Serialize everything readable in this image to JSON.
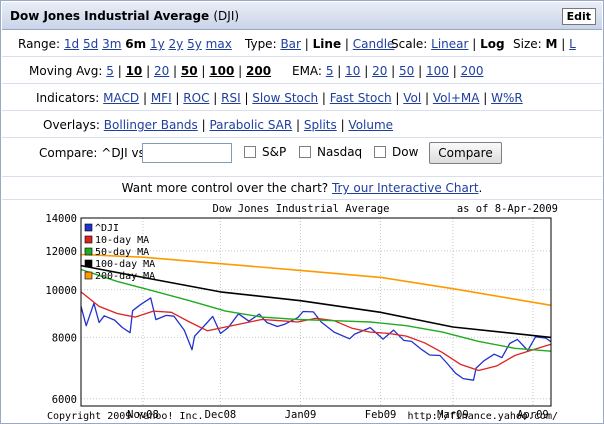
{
  "header": {
    "title": "Dow Jones Industrial Average",
    "symbol": "(DJI)",
    "edit_label": "Edit"
  },
  "range": {
    "label": "Range:",
    "options": [
      "1d",
      "5d",
      "3m",
      "6m",
      "1y",
      "2y",
      "5y",
      "max"
    ],
    "selected": "6m"
  },
  "type": {
    "label": "Type:",
    "options": [
      "Bar",
      "Line",
      "Candle"
    ],
    "selected": "Line"
  },
  "scale": {
    "label": "Scale:",
    "options": [
      "Linear",
      "Log"
    ],
    "selected": "Log"
  },
  "size": {
    "label": "Size:",
    "options": [
      "M",
      "L"
    ],
    "selected": "M"
  },
  "moving_avg": {
    "label": "Moving Avg:",
    "options": [
      "5",
      "10",
      "20",
      "50",
      "100",
      "200"
    ],
    "bold": [
      "10",
      "50",
      "100",
      "200"
    ]
  },
  "ema": {
    "label": "EMA:",
    "options": [
      "5",
      "10",
      "20",
      "50",
      "100",
      "200"
    ]
  },
  "indicators": {
    "label": "Indicators:",
    "options": [
      "MACD",
      "MFI",
      "ROC",
      "RSI",
      "Slow Stoch",
      "Fast Stoch",
      "Vol",
      "Vol+MA",
      "W%R"
    ]
  },
  "overlays": {
    "label": "Overlays:",
    "options": [
      "Bollinger Bands",
      "Parabolic SAR",
      "Splits",
      "Volume"
    ]
  },
  "compare": {
    "label": "Compare: ^DJI vs",
    "input_value": "",
    "checkboxes": [
      "S&P",
      "Nasdaq",
      "Dow"
    ],
    "button_label": "Compare"
  },
  "more_control": {
    "text": "Want more control over the chart?",
    "link": "Try our Interactive Chart",
    "suffix": "."
  },
  "footer": {
    "copyright": "Copyright 2009 Yahoo! Inc.",
    "url": "http://finance.yahoo.com/"
  },
  "chart_data": {
    "type": "line",
    "title": "Dow Jones Industrial Average",
    "as_of": "as of   8-Apr-2009",
    "scale": "log",
    "ylim": [
      5800,
      14000
    ],
    "yticks": [
      6000,
      8000,
      10000,
      12000,
      14000
    ],
    "ytick_labels": [
      "6000",
      "8000",
      "10000",
      "12000",
      "14000"
    ],
    "xlim": [
      "2008-10-08",
      "2009-04-08"
    ],
    "xticks": [
      {
        "date": "2008-11-01",
        "label": "Nov08"
      },
      {
        "date": "2008-12-01",
        "label": "Dec08"
      },
      {
        "date": "2009-01-01",
        "label": "Jan09"
      },
      {
        "date": "2009-02-01",
        "label": "Feb09"
      },
      {
        "date": "2009-03-01",
        "label": "Mar09"
      },
      {
        "date": "2009-04-01",
        "label": "Apr09"
      }
    ],
    "grid": true,
    "legend_position": "top-left",
    "series": [
      {
        "name": "^DJI",
        "color": "#2233cc",
        "width": 1.3,
        "points": [
          [
            "2008-10-08",
            9255
          ],
          [
            "2008-10-10",
            8451
          ],
          [
            "2008-10-13",
            9387
          ],
          [
            "2008-10-15",
            8578
          ],
          [
            "2008-10-17",
            8852
          ],
          [
            "2008-10-21",
            8675
          ],
          [
            "2008-10-24",
            8378
          ],
          [
            "2008-10-27",
            8176
          ],
          [
            "2008-10-28",
            9065
          ],
          [
            "2008-10-31",
            9325
          ],
          [
            "2008-11-04",
            9625
          ],
          [
            "2008-11-06",
            8695
          ],
          [
            "2008-11-10",
            8870
          ],
          [
            "2008-11-13",
            8835
          ],
          [
            "2008-11-17",
            8273
          ],
          [
            "2008-11-20",
            7552
          ],
          [
            "2008-11-21",
            8046
          ],
          [
            "2008-11-25",
            8479
          ],
          [
            "2008-11-28",
            8829
          ],
          [
            "2008-12-01",
            8149
          ],
          [
            "2008-12-04",
            8376
          ],
          [
            "2008-12-08",
            8934
          ],
          [
            "2008-12-12",
            8629
          ],
          [
            "2008-12-16",
            8924
          ],
          [
            "2008-12-19",
            8579
          ],
          [
            "2008-12-23",
            8419
          ],
          [
            "2008-12-26",
            8515
          ],
          [
            "2008-12-31",
            8776
          ],
          [
            "2009-01-02",
            9034
          ],
          [
            "2009-01-06",
            9015
          ],
          [
            "2009-01-09",
            8599
          ],
          [
            "2009-01-14",
            8200
          ],
          [
            "2009-01-20",
            7949
          ],
          [
            "2009-01-22",
            8123
          ],
          [
            "2009-01-28",
            8375
          ],
          [
            "2009-02-02",
            7936
          ],
          [
            "2009-02-06",
            8280
          ],
          [
            "2009-02-10",
            7888
          ],
          [
            "2009-02-13",
            7850
          ],
          [
            "2009-02-17",
            7552
          ],
          [
            "2009-02-20",
            7366
          ],
          [
            "2009-02-24",
            7350
          ],
          [
            "2009-02-27",
            7063
          ],
          [
            "2009-03-02",
            6763
          ],
          [
            "2009-03-05",
            6594
          ],
          [
            "2009-03-09",
            6547
          ],
          [
            "2009-03-10",
            6926
          ],
          [
            "2009-03-13",
            7170
          ],
          [
            "2009-03-17",
            7395
          ],
          [
            "2009-03-20",
            7278
          ],
          [
            "2009-03-23",
            7776
          ],
          [
            "2009-03-26",
            7924
          ],
          [
            "2009-03-30",
            7522
          ],
          [
            "2009-04-02",
            8018
          ],
          [
            "2009-04-06",
            7975
          ],
          [
            "2009-04-08",
            7837
          ]
        ]
      },
      {
        "name": "10-day MA",
        "color": "#dd2222",
        "width": 1.3,
        "points": [
          [
            "2008-10-08",
            9900
          ],
          [
            "2008-10-15",
            9250
          ],
          [
            "2008-10-22",
            8950
          ],
          [
            "2008-10-29",
            8800
          ],
          [
            "2008-11-05",
            9050
          ],
          [
            "2008-11-12",
            9000
          ],
          [
            "2008-11-19",
            8600
          ],
          [
            "2008-11-26",
            8250
          ],
          [
            "2008-12-03",
            8400
          ],
          [
            "2008-12-10",
            8550
          ],
          [
            "2008-12-17",
            8700
          ],
          [
            "2008-12-24",
            8650
          ],
          [
            "2008-12-31",
            8600
          ],
          [
            "2009-01-07",
            8750
          ],
          [
            "2009-01-14",
            8650
          ],
          [
            "2009-01-21",
            8350
          ],
          [
            "2009-01-28",
            8200
          ],
          [
            "2009-02-04",
            8150
          ],
          [
            "2009-02-11",
            8050
          ],
          [
            "2009-02-18",
            7800
          ],
          [
            "2009-02-25",
            7450
          ],
          [
            "2009-03-04",
            7050
          ],
          [
            "2009-03-11",
            6850
          ],
          [
            "2009-03-18",
            7000
          ],
          [
            "2009-03-25",
            7350
          ],
          [
            "2009-04-01",
            7550
          ],
          [
            "2009-04-08",
            7750
          ]
        ]
      },
      {
        "name": "50-day MA",
        "color": "#22aa22",
        "width": 1.4,
        "points": [
          [
            "2008-10-08",
            11000
          ],
          [
            "2008-10-22",
            10400
          ],
          [
            "2008-11-05",
            9950
          ],
          [
            "2008-11-19",
            9500
          ],
          [
            "2008-12-03",
            9050
          ],
          [
            "2008-12-17",
            8800
          ],
          [
            "2008-12-31",
            8700
          ],
          [
            "2009-01-14",
            8650
          ],
          [
            "2009-01-28",
            8600
          ],
          [
            "2009-02-11",
            8450
          ],
          [
            "2009-02-25",
            8200
          ],
          [
            "2009-03-11",
            7850
          ],
          [
            "2009-03-25",
            7600
          ],
          [
            "2009-04-08",
            7500
          ]
        ]
      },
      {
        "name": "100-day MA",
        "color": "#000000",
        "width": 1.6,
        "points": [
          [
            "2008-10-08",
            11200
          ],
          [
            "2008-11-01",
            10600
          ],
          [
            "2008-12-01",
            9900
          ],
          [
            "2009-01-01",
            9500
          ],
          [
            "2009-02-01",
            9000
          ],
          [
            "2009-03-01",
            8400
          ],
          [
            "2009-04-08",
            8000
          ]
        ]
      },
      {
        "name": "200-day MA",
        "color": "#ff9900",
        "width": 1.6,
        "points": [
          [
            "2008-10-08",
            11800
          ],
          [
            "2008-11-01",
            11650
          ],
          [
            "2008-12-01",
            11300
          ],
          [
            "2009-01-01",
            10950
          ],
          [
            "2009-02-01",
            10600
          ],
          [
            "2009-03-01",
            10050
          ],
          [
            "2009-04-08",
            9300
          ]
        ]
      }
    ]
  }
}
